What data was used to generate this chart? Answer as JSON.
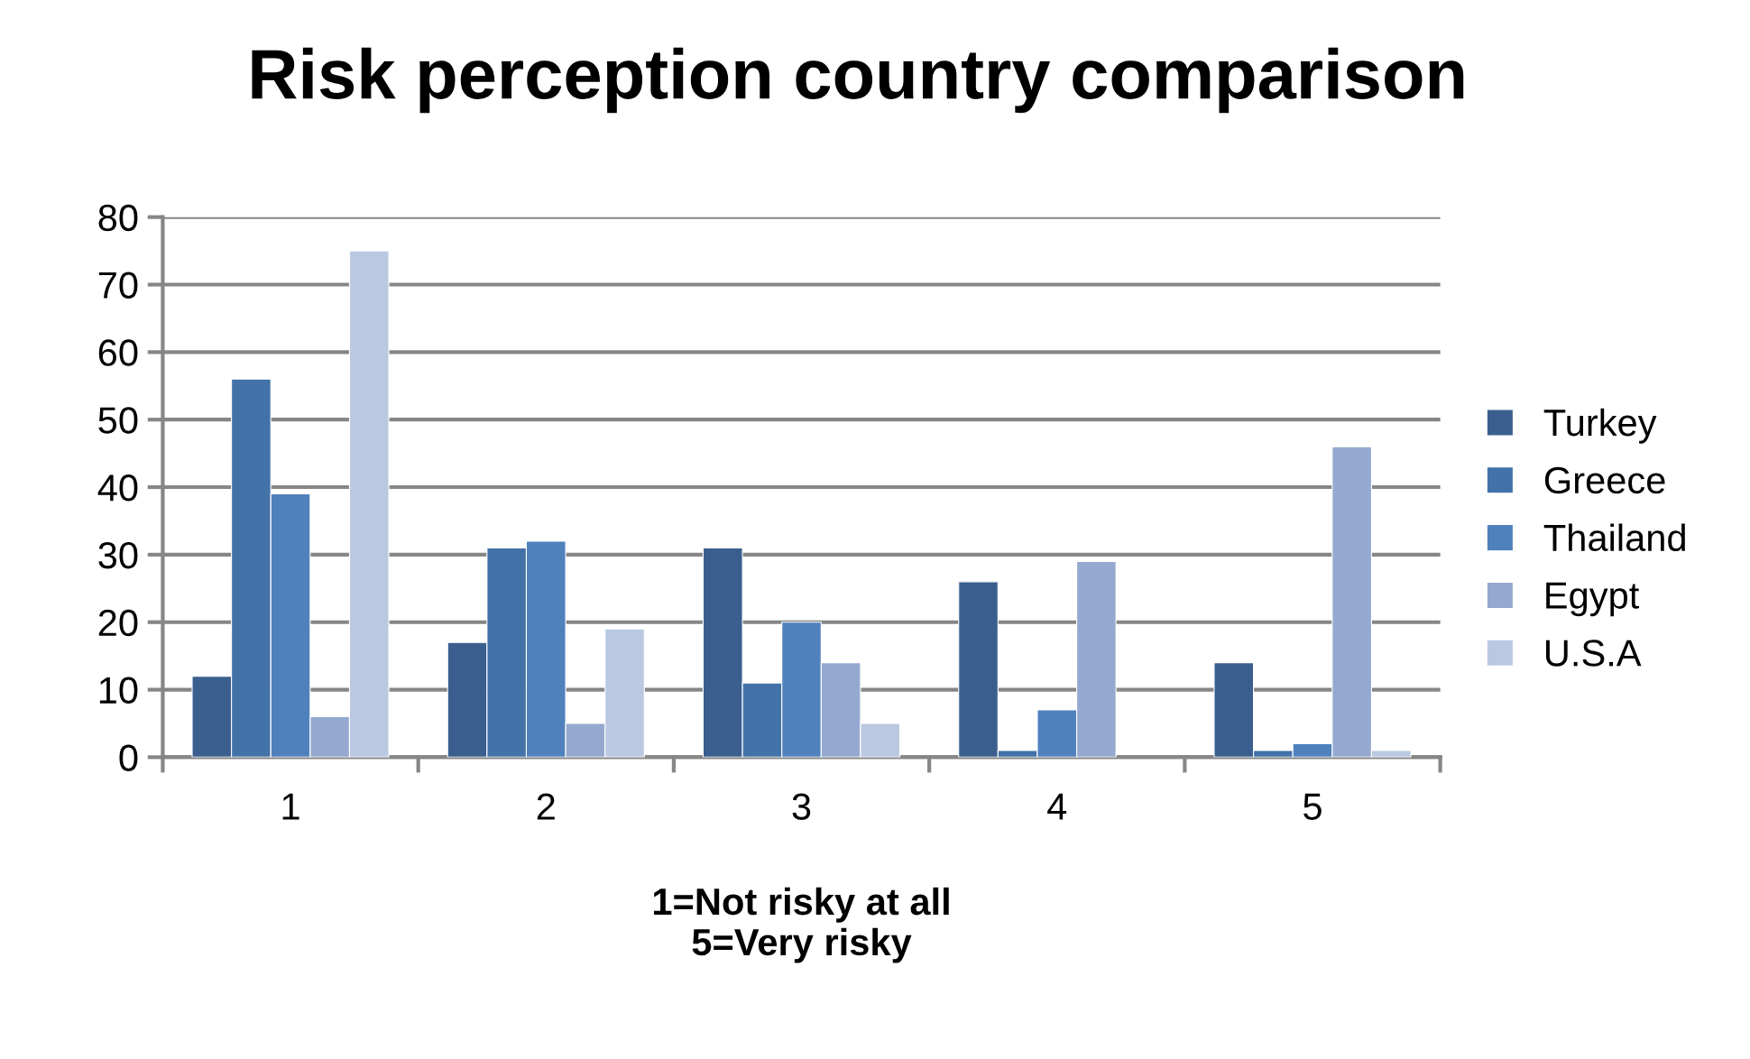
{
  "chart_data": {
    "type": "bar",
    "title": "Risk perception country comparison",
    "xlabel": "1=Not risky at all\n5=Very risky",
    "categories": [
      "1",
      "2",
      "3",
      "4",
      "5"
    ],
    "series": [
      {
        "name": "Turkey",
        "color": "#3a5f8f",
        "values": [
          12,
          17,
          31,
          26,
          14
        ]
      },
      {
        "name": "Greece",
        "color": "#4372a8",
        "values": [
          56,
          31,
          11,
          1,
          1
        ]
      },
      {
        "name": "Thailand",
        "color": "#4f81bd",
        "values": [
          39,
          32,
          20,
          7,
          2
        ]
      },
      {
        "name": "Egypt",
        "color": "#95a9d0",
        "values": [
          6,
          5,
          14,
          29,
          46
        ]
      },
      {
        "name": "U.S.A",
        "color": "#bac8e2",
        "values": [
          75,
          19,
          5,
          null,
          1
        ]
      }
    ],
    "ylim": [
      0,
      80
    ],
    "yticks": [
      0,
      10,
      20,
      30,
      40,
      50,
      60,
      70,
      80
    ],
    "grid": "y",
    "legend": "right"
  }
}
